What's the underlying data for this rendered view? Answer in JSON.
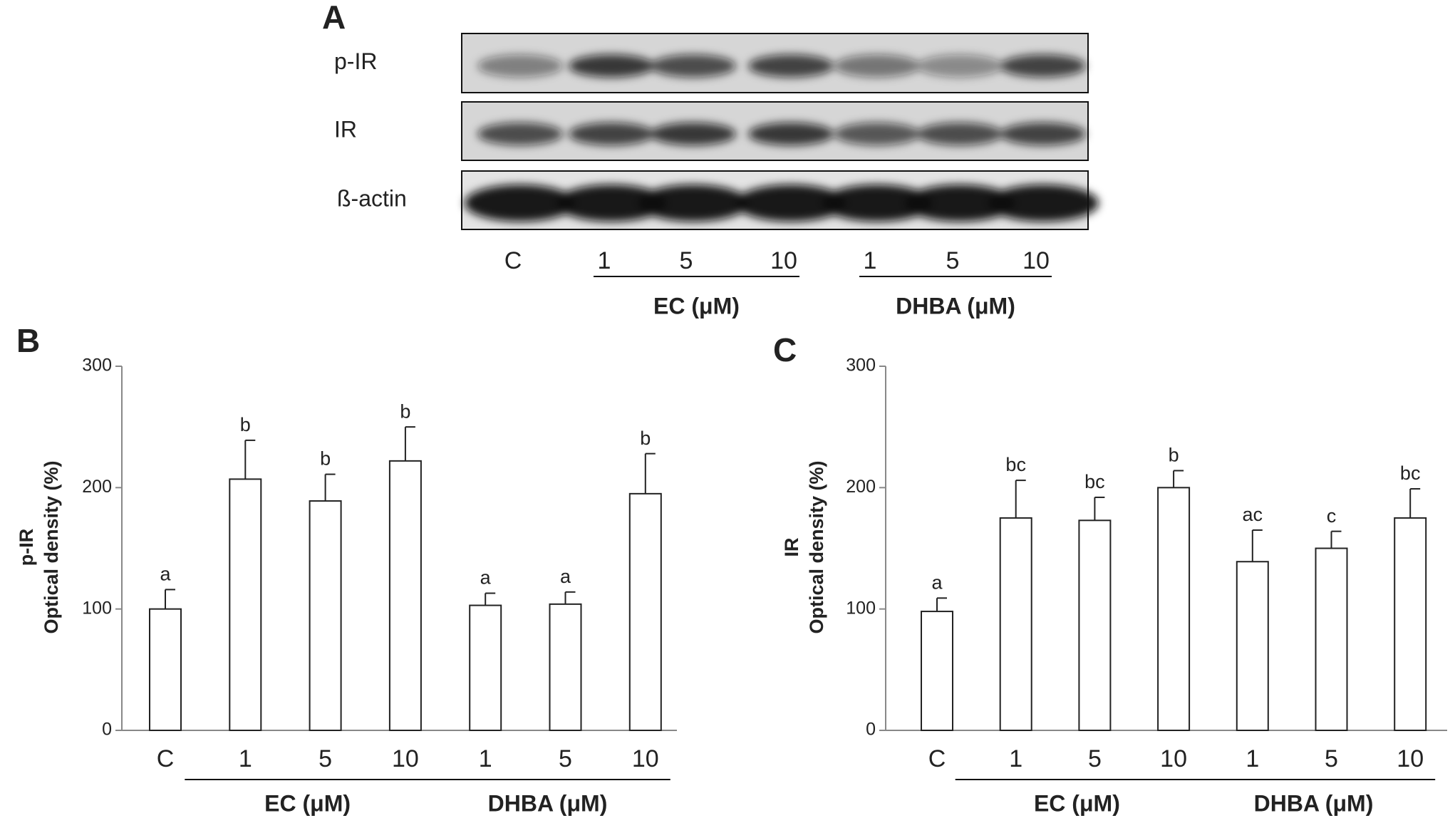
{
  "blot": {
    "panel_label": "A",
    "rows": [
      "p-IR",
      "IR",
      "ß-actin"
    ],
    "lanes": [
      "C",
      "1",
      "5",
      "10",
      "1",
      "5",
      "10"
    ],
    "group_labels": [
      "EC (μM)",
      "DHBA (μM)"
    ]
  },
  "chart_data": [
    {
      "type": "bar",
      "panel_label": "B",
      "ylabel": [
        "p-IR",
        "Optical density (%)"
      ],
      "categories": [
        "C",
        "1",
        "5",
        "10",
        "1",
        "5",
        "10"
      ],
      "group_labels": [
        "EC (μM)",
        "DHBA (μM)"
      ],
      "values": [
        100,
        207,
        189,
        222,
        103,
        104,
        195
      ],
      "errors": [
        16,
        32,
        22,
        28,
        10,
        10,
        33
      ],
      "annotations": [
        "a",
        "b",
        "b",
        "b",
        "a",
        "a",
        "b"
      ],
      "color": "#ffffff",
      "ylim": [
        0,
        300
      ],
      "yticks": [
        0,
        100,
        200,
        300
      ]
    },
    {
      "type": "bar",
      "panel_label": "C",
      "ylabel": [
        "IR",
        "Optical density (%)"
      ],
      "categories": [
        "C",
        "1",
        "5",
        "10",
        "1",
        "5",
        "10"
      ],
      "group_labels": [
        "EC (μM)",
        "DHBA (μM)"
      ],
      "values": [
        98,
        175,
        173,
        200,
        139,
        150,
        175
      ],
      "errors": [
        11,
        31,
        19,
        14,
        26,
        14,
        24
      ],
      "annotations": [
        "a",
        "bc",
        "bc",
        "b",
        "ac",
        "c",
        "bc"
      ],
      "color": "#ffffff",
      "ylim": [
        0,
        300
      ],
      "yticks": [
        0,
        100,
        200,
        300
      ]
    }
  ]
}
